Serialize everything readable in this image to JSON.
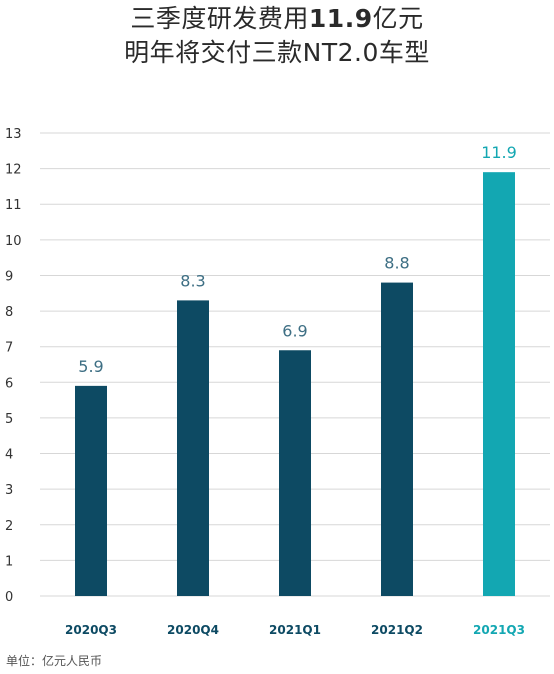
{
  "title": {
    "line1_prefix": "三季度研发费用",
    "line1_bold": "11.9",
    "line1_suffix": "亿元",
    "line2": "明年将交付三款NT2.0车型"
  },
  "footnote": "单位：亿元人民币",
  "colors": {
    "bar": "#0d4a63",
    "highlight": "#13a7b2",
    "value_label": "#3e6f84",
    "grid": "#d7d7d7",
    "tick": "#333333"
  },
  "chart_data": {
    "type": "bar",
    "categories": [
      "2020Q3",
      "2020Q4",
      "2021Q1",
      "2021Q2",
      "2021Q3"
    ],
    "values": [
      5.9,
      8.3,
      6.9,
      8.8,
      11.9
    ],
    "value_labels": [
      "5.9",
      "8.3",
      "6.9",
      "8.8",
      "11.9"
    ],
    "highlight_index": 4,
    "ylim": [
      0,
      13
    ],
    "yticks": [
      0,
      1,
      2,
      3,
      4,
      5,
      6,
      7,
      8,
      9,
      10,
      11,
      12,
      13
    ],
    "grid": true
  }
}
